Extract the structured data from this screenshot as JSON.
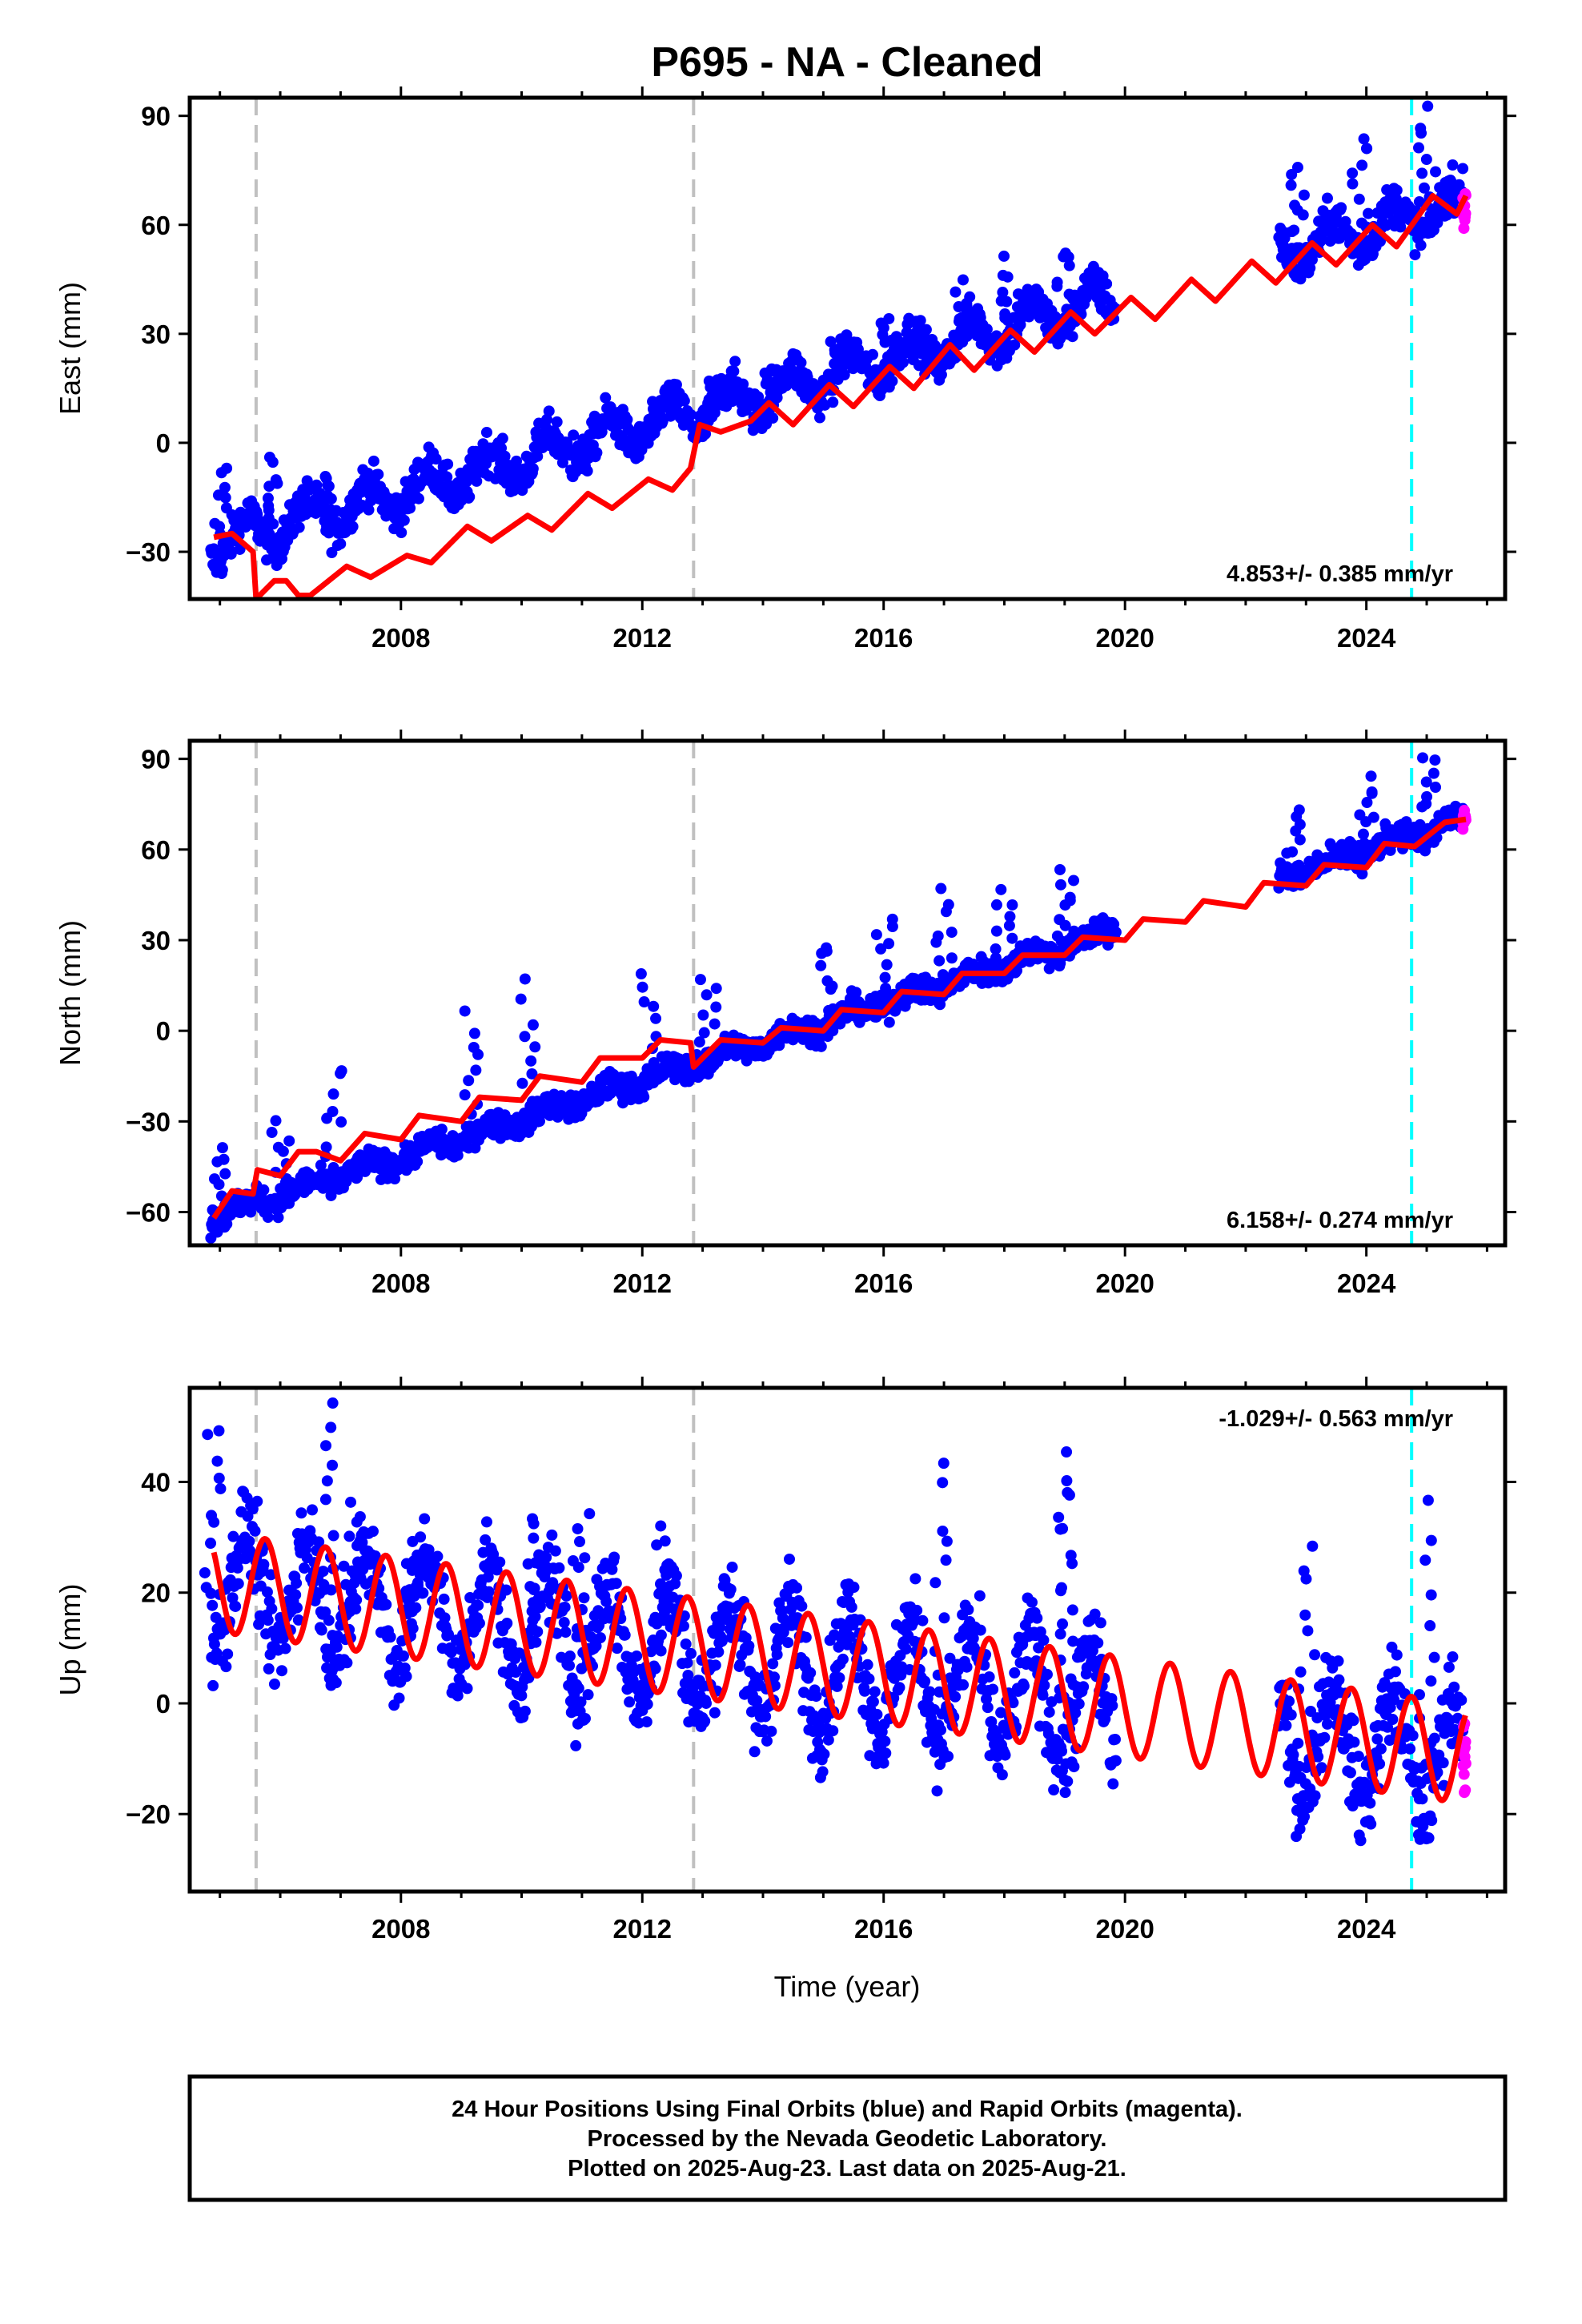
{
  "title": "P695  - NA - Cleaned",
  "xlabel": "Time (year)",
  "footer": {
    "lines": [
      "24 Hour Positions Using Final Orbits (blue) and Rapid Orbits (magenta).",
      "Processed by the Nevada Geodetic Laboratory.",
      "Plotted on 2025-Aug-23. Last data on 2025-Aug-21."
    ]
  },
  "colors": {
    "final_orbits": "#0000ff",
    "rapid_orbits": "#ff00ff",
    "model": "#ff0000",
    "equipment_change": "#c0c0c0",
    "event": "#00ffff"
  },
  "chart_data": [
    {
      "type": "scatter",
      "component": "east",
      "ylabel": "East (mm)",
      "xlim": [
        2004.5,
        2026.3
      ],
      "ylim": [
        -43,
        95
      ],
      "xticks": [
        "2008",
        "2012",
        "2016",
        "2020",
        "2024"
      ],
      "yticks": [
        "90",
        "60",
        "30",
        "0",
        "−30"
      ],
      "rate_label": "4.853+/- 0.385 mm/yr",
      "rate_label_position": "bottom-right",
      "grey_dashed_lines_year": [
        2005.6,
        2012.85
      ],
      "cyan_dashed_line_year": 2024.75,
      "series": [
        {
          "role": "final_orbits",
          "segments": [
            [
              2004.85,
              2019.85
            ],
            [
              2022.55,
              2025.6
            ]
          ],
          "trend": {
            "x0": 2004.85,
            "y0": -28,
            "x1": 2025.6,
            "y1": 66
          },
          "annual_amplitude": 5,
          "scatter": 4,
          "spikes": [
            {
              "x": 2005.0,
              "y": -6
            },
            {
              "x": 2005.9,
              "y": -4
            },
            {
              "x": 2006.7,
              "y": -10
            },
            {
              "x": 2011.0,
              "y": -3
            },
            {
              "x": 2012.1,
              "y": 2
            },
            {
              "x": 2013.2,
              "y": 18
            },
            {
              "x": 2014.1,
              "y": 20
            },
            {
              "x": 2015.2,
              "y": 28
            },
            {
              "x": 2016.1,
              "y": 34
            },
            {
              "x": 2017.3,
              "y": 44
            },
            {
              "x": 2018.1,
              "y": 51
            },
            {
              "x": 2019.0,
              "y": 54
            },
            {
              "x": 2022.9,
              "y": 76
            },
            {
              "x": 2023.9,
              "y": 85
            },
            {
              "x": 2025.0,
              "y": 92
            }
          ]
        },
        {
          "role": "rapid_orbits",
          "segments": [
            [
              2025.6,
              2025.65
            ]
          ],
          "trend": {
            "x0": 2025.6,
            "y0": 64,
            "x1": 2025.65,
            "y1": 66
          },
          "annual_amplitude": 0,
          "scatter": 4,
          "spikes": []
        },
        {
          "role": "model",
          "points": [
            [
              2004.9,
              -26
            ],
            [
              2005.2,
              -25
            ],
            [
              2005.55,
              -30
            ],
            [
              2005.6,
              -43
            ],
            [
              2005.9,
              -38
            ],
            [
              2006.1,
              -38
            ],
            [
              2006.3,
              -42
            ],
            [
              2006.5,
              -42
            ],
            [
              2007.1,
              -34
            ],
            [
              2007.5,
              -37
            ],
            [
              2008.1,
              -31
            ],
            [
              2008.5,
              -33
            ],
            [
              2009.1,
              -23
            ],
            [
              2009.5,
              -27
            ],
            [
              2010.1,
              -20
            ],
            [
              2010.5,
              -24
            ],
            [
              2011.1,
              -14
            ],
            [
              2011.5,
              -18
            ],
            [
              2012.1,
              -10
            ],
            [
              2012.5,
              -13
            ],
            [
              2012.8,
              -7
            ],
            [
              2012.95,
              5
            ],
            [
              2013.3,
              3
            ],
            [
              2013.8,
              6
            ],
            [
              2014.1,
              11
            ],
            [
              2014.5,
              5
            ],
            [
              2015.1,
              16
            ],
            [
              2015.5,
              10
            ],
            [
              2016.1,
              21
            ],
            [
              2016.5,
              15
            ],
            [
              2017.1,
              27
            ],
            [
              2017.5,
              20
            ],
            [
              2018.1,
              31
            ],
            [
              2018.5,
              25
            ],
            [
              2019.1,
              36
            ],
            [
              2019.5,
              30
            ],
            [
              2020.1,
              40
            ],
            [
              2020.5,
              34
            ],
            [
              2021.1,
              45
            ],
            [
              2021.5,
              39
            ],
            [
              2022.1,
              50
            ],
            [
              2022.5,
              44
            ],
            [
              2023.1,
              55
            ],
            [
              2023.5,
              49
            ],
            [
              2024.1,
              60
            ],
            [
              2024.5,
              54
            ],
            [
              2025.1,
              68
            ],
            [
              2025.5,
              63
            ],
            [
              2025.65,
              68
            ]
          ]
        }
      ]
    },
    {
      "type": "scatter",
      "component": "north",
      "ylabel": "North (mm)",
      "xlim": [
        2004.5,
        2026.3
      ],
      "ylim": [
        -71,
        96
      ],
      "xticks": [
        "2008",
        "2012",
        "2016",
        "2020",
        "2024"
      ],
      "yticks": [
        "90",
        "60",
        "30",
        "0",
        "−30",
        "−60"
      ],
      "rate_label": "6.158+/- 0.274 mm/yr",
      "rate_label_position": "bottom-right",
      "grey_dashed_lines_year": [
        2005.6,
        2012.85
      ],
      "cyan_dashed_line_year": 2024.75,
      "series": [
        {
          "role": "final_orbits",
          "segments": [
            [
              2004.85,
              2019.85
            ],
            [
              2022.55,
              2025.6
            ]
          ],
          "trend": {
            "x0": 2004.85,
            "y0": -62,
            "x1": 2025.6,
            "y1": 70
          },
          "annual_amplitude": 2,
          "scatter": 3,
          "spikes": [
            {
              "x": 2005.0,
              "y": -40
            },
            {
              "x": 2006.0,
              "y": -30
            },
            {
              "x": 2006.9,
              "y": -14
            },
            {
              "x": 2009.2,
              "y": 6
            },
            {
              "x": 2010.1,
              "y": 13
            },
            {
              "x": 2012.1,
              "y": 18
            },
            {
              "x": 2013.1,
              "y": 17
            },
            {
              "x": 2015.1,
              "y": 30
            },
            {
              "x": 2016.0,
              "y": 38
            },
            {
              "x": 2017.0,
              "y": 44
            },
            {
              "x": 2018.0,
              "y": 47
            },
            {
              "x": 2019.0,
              "y": 54
            },
            {
              "x": 2022.8,
              "y": 72
            },
            {
              "x": 2024.0,
              "y": 83
            },
            {
              "x": 2025.0,
              "y": 92
            }
          ]
        },
        {
          "role": "rapid_orbits",
          "segments": [
            [
              2025.6,
              2025.65
            ]
          ],
          "trend": {
            "x0": 2025.6,
            "y0": 69,
            "x1": 2025.65,
            "y1": 72
          },
          "annual_amplitude": 0,
          "scatter": 2,
          "spikes": []
        },
        {
          "role": "model",
          "points": [
            [
              2004.9,
              -62
            ],
            [
              2005.2,
              -53
            ],
            [
              2005.55,
              -54
            ],
            [
              2005.62,
              -46
            ],
            [
              2006.0,
              -48
            ],
            [
              2006.3,
              -40
            ],
            [
              2006.6,
              -40
            ],
            [
              2007.0,
              -43
            ],
            [
              2007.4,
              -34
            ],
            [
              2008.0,
              -36
            ],
            [
              2008.3,
              -28
            ],
            [
              2009.0,
              -30
            ],
            [
              2009.3,
              -22
            ],
            [
              2010.0,
              -23
            ],
            [
              2010.3,
              -15
            ],
            [
              2011.0,
              -17
            ],
            [
              2011.3,
              -9
            ],
            [
              2012.0,
              -9
            ],
            [
              2012.3,
              -3
            ],
            [
              2012.8,
              -4
            ],
            [
              2012.85,
              -12
            ],
            [
              2013.3,
              -3
            ],
            [
              2014.0,
              -4
            ],
            [
              2014.3,
              1
            ],
            [
              2015.0,
              0
            ],
            [
              2015.3,
              7
            ],
            [
              2016.0,
              6
            ],
            [
              2016.3,
              13
            ],
            [
              2017.0,
              12
            ],
            [
              2017.3,
              19
            ],
            [
              2018.0,
              19
            ],
            [
              2018.3,
              25
            ],
            [
              2019.0,
              25
            ],
            [
              2019.3,
              31
            ],
            [
              2020.0,
              30
            ],
            [
              2020.3,
              37
            ],
            [
              2021.0,
              36
            ],
            [
              2021.3,
              43
            ],
            [
              2022.0,
              41
            ],
            [
              2022.3,
              49
            ],
            [
              2023.0,
              48
            ],
            [
              2023.3,
              55
            ],
            [
              2024.0,
              54
            ],
            [
              2024.3,
              62
            ],
            [
              2024.8,
              61
            ],
            [
              2025.3,
              69
            ],
            [
              2025.65,
              70
            ]
          ]
        }
      ]
    },
    {
      "type": "scatter",
      "component": "up",
      "ylabel": "Up (mm)",
      "xlim": [
        2004.5,
        2026.3
      ],
      "ylim": [
        -34,
        57
      ],
      "xticks": [
        "2008",
        "2012",
        "2016",
        "2020",
        "2024"
      ],
      "yticks": [
        "40",
        "20",
        "0",
        "−20"
      ],
      "rate_label": "-1.029+/- 0.563 mm/yr",
      "rate_label_position": "top-right",
      "grey_dashed_lines_year": [
        2005.6,
        2012.85
      ],
      "cyan_dashed_line_year": 2024.75,
      "series": [
        {
          "role": "final_orbits",
          "segments": [
            [
              2004.85,
              2019.85
            ],
            [
              2022.55,
              2025.6
            ]
          ],
          "trend": {
            "x0": 2004.85,
            "y0": 22,
            "x1": 2025.6,
            "y1": -10
          },
          "annual_amplitude": 10,
          "scatter": 6,
          "spikes": [
            {
              "x": 2004.9,
              "y": 50
            },
            {
              "x": 2006.8,
              "y": 55
            },
            {
              "x": 2007.2,
              "y": 35
            },
            {
              "x": 2011.0,
              "y": 34
            },
            {
              "x": 2017.0,
              "y": 43
            },
            {
              "x": 2019.0,
              "y": 46
            },
            {
              "x": 2019.0,
              "y": 38
            },
            {
              "x": 2023.0,
              "y": 30
            },
            {
              "x": 2025.0,
              "y": 35
            },
            {
              "x": 2008.2,
              "y": 30
            },
            {
              "x": 2010.2,
              "y": 32
            },
            {
              "x": 2012.3,
              "y": 32
            }
          ]
        },
        {
          "role": "rapid_orbits",
          "segments": [
            [
              2025.6,
              2025.65
            ]
          ],
          "trend": {
            "x0": 2025.6,
            "y0": -12,
            "x1": 2025.65,
            "y1": -10
          },
          "annual_amplitude": 0,
          "scatter": 8,
          "spikes": []
        },
        {
          "role": "model",
          "annual_model": {
            "x_start": 2004.9,
            "x_end": 2025.65,
            "offset_at_start": 22,
            "slope_per_year": -1.5,
            "amplitude": 9,
            "peak_phase_year_fraction": 0.75
          }
        }
      ]
    }
  ]
}
